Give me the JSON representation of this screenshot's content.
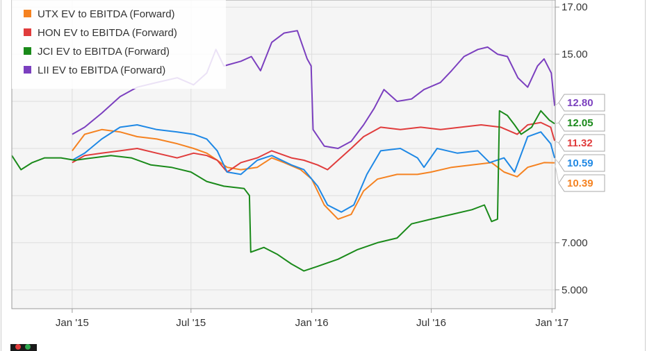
{
  "chart_data": {
    "type": "line",
    "x_ticks": [
      "Jan '15",
      "Jul '15",
      "Jan '16",
      "Jul '16",
      "Jan '17"
    ],
    "y_ticks": [
      "5.000",
      "7.000",
      "15.00",
      "17.00"
    ],
    "ylim": [
      4.2,
      17.3
    ],
    "x_range": [
      "2014-10-01",
      "2017-01-06"
    ],
    "grid": true,
    "legend_position": "top-left",
    "series": [
      {
        "name": "UTX EV to EBITDA (Forward)",
        "color": "#f58220",
        "end_label": "10.39",
        "points": [
          [
            "2015-01-01",
            10.9
          ],
          [
            "2015-01-20",
            11.6
          ],
          [
            "2015-02-15",
            11.8
          ],
          [
            "2015-03-15",
            11.7
          ],
          [
            "2015-04-10",
            11.5
          ],
          [
            "2015-05-10",
            11.4
          ],
          [
            "2015-06-10",
            11.2
          ],
          [
            "2015-07-05",
            11.0
          ],
          [
            "2015-07-25",
            10.8
          ],
          [
            "2015-08-10",
            10.5
          ],
          [
            "2015-08-25",
            10.2
          ],
          [
            "2015-09-15",
            10.1
          ],
          [
            "2015-10-10",
            10.2
          ],
          [
            "2015-11-01",
            10.6
          ],
          [
            "2015-11-20",
            10.4
          ],
          [
            "2015-12-15",
            10.1
          ],
          [
            "2016-01-01",
            9.7
          ],
          [
            "2016-01-20",
            8.6
          ],
          [
            "2016-02-10",
            8.0
          ],
          [
            "2016-03-01",
            8.2
          ],
          [
            "2016-03-20",
            9.2
          ],
          [
            "2016-04-10",
            9.7
          ],
          [
            "2016-05-10",
            9.9
          ],
          [
            "2016-06-10",
            9.9
          ],
          [
            "2016-07-01",
            10.0
          ],
          [
            "2016-08-01",
            10.2
          ],
          [
            "2016-09-01",
            10.3
          ],
          [
            "2016-10-01",
            10.4
          ],
          [
            "2016-10-20",
            10.0
          ],
          [
            "2016-11-09",
            9.8
          ],
          [
            "2016-11-25",
            10.2
          ],
          [
            "2016-12-20",
            10.4
          ],
          [
            "2017-01-05",
            10.39
          ]
        ]
      },
      {
        "name": "HON EV to EBITDA (Forward)",
        "color": "#e03c3c",
        "end_label": "11.32",
        "points": [
          [
            "2015-01-01",
            10.4
          ],
          [
            "2015-01-20",
            10.7
          ],
          [
            "2015-02-15",
            10.8
          ],
          [
            "2015-03-15",
            10.9
          ],
          [
            "2015-04-10",
            11.0
          ],
          [
            "2015-05-10",
            10.8
          ],
          [
            "2015-06-10",
            10.6
          ],
          [
            "2015-07-05",
            10.8
          ],
          [
            "2015-07-25",
            10.7
          ],
          [
            "2015-08-10",
            10.5
          ],
          [
            "2015-08-25",
            10.0
          ],
          [
            "2015-09-15",
            10.4
          ],
          [
            "2015-10-10",
            10.6
          ],
          [
            "2015-11-01",
            10.9
          ],
          [
            "2015-12-01",
            10.6
          ],
          [
            "2015-12-20",
            10.5
          ],
          [
            "2016-01-10",
            10.3
          ],
          [
            "2016-01-25",
            10.1
          ],
          [
            "2016-02-10",
            10.5
          ],
          [
            "2016-03-01",
            11.0
          ],
          [
            "2016-03-20",
            11.5
          ],
          [
            "2016-04-15",
            11.9
          ],
          [
            "2016-05-15",
            11.8
          ],
          [
            "2016-06-15",
            11.9
          ],
          [
            "2016-07-15",
            11.8
          ],
          [
            "2016-08-15",
            11.9
          ],
          [
            "2016-09-15",
            12.0
          ],
          [
            "2016-10-15",
            11.9
          ],
          [
            "2016-11-09",
            11.6
          ],
          [
            "2016-11-25",
            12.0
          ],
          [
            "2016-12-15",
            12.1
          ],
          [
            "2016-12-30",
            11.9
          ],
          [
            "2017-01-05",
            11.32
          ]
        ]
      },
      {
        "name": "JCI EV to EBITDA (Forward)",
        "color": "#1a8a1a",
        "end_label": "12.05",
        "points": [
          [
            "2014-10-01",
            10.7
          ],
          [
            "2014-10-15",
            10.1
          ],
          [
            "2014-11-01",
            10.4
          ],
          [
            "2014-11-20",
            10.6
          ],
          [
            "2014-12-15",
            10.6
          ],
          [
            "2015-01-05",
            10.5
          ],
          [
            "2015-02-01",
            10.6
          ],
          [
            "2015-03-01",
            10.7
          ],
          [
            "2015-04-01",
            10.6
          ],
          [
            "2015-05-01",
            10.3
          ],
          [
            "2015-06-01",
            10.2
          ],
          [
            "2015-07-01",
            10.0
          ],
          [
            "2015-07-25",
            9.6
          ],
          [
            "2015-08-20",
            9.4
          ],
          [
            "2015-09-20",
            9.3
          ],
          [
            "2015-09-28",
            9.0
          ],
          [
            "2015-09-30",
            6.6
          ],
          [
            "2015-10-20",
            6.8
          ],
          [
            "2015-11-10",
            6.5
          ],
          [
            "2015-12-01",
            6.1
          ],
          [
            "2015-12-20",
            5.8
          ],
          [
            "2016-01-10",
            6.0
          ],
          [
            "2016-02-10",
            6.3
          ],
          [
            "2016-03-10",
            6.7
          ],
          [
            "2016-04-10",
            7.0
          ],
          [
            "2016-05-10",
            7.2
          ],
          [
            "2016-06-01",
            7.8
          ],
          [
            "2016-07-01",
            8.0
          ],
          [
            "2016-08-01",
            8.2
          ],
          [
            "2016-09-01",
            8.4
          ],
          [
            "2016-09-20",
            8.6
          ],
          [
            "2016-10-01",
            7.9
          ],
          [
            "2016-10-10",
            8.0
          ],
          [
            "2016-10-13",
            12.6
          ],
          [
            "2016-10-25",
            12.4
          ],
          [
            "2016-11-05",
            12.0
          ],
          [
            "2016-11-15",
            11.6
          ],
          [
            "2016-12-01",
            11.9
          ],
          [
            "2016-12-15",
            12.6
          ],
          [
            "2016-12-28",
            12.2
          ],
          [
            "2017-01-05",
            12.05
          ]
        ]
      },
      {
        "name": "LII EV to EBITDA (Forward)",
        "color": "#7b3fbf",
        "end_label": "12.80",
        "points": [
          [
            "2015-01-01",
            11.6
          ],
          [
            "2015-01-20",
            11.9
          ],
          [
            "2015-02-15",
            12.5
          ],
          [
            "2015-03-15",
            13.2
          ],
          [
            "2015-04-10",
            13.6
          ],
          [
            "2015-05-10",
            13.8
          ],
          [
            "2015-06-10",
            14.0
          ],
          [
            "2015-07-05",
            13.7
          ],
          [
            "2015-07-25",
            14.2
          ],
          [
            "2015-08-08",
            15.2
          ],
          [
            "2015-08-20",
            14.5
          ],
          [
            "2015-09-15",
            14.7
          ],
          [
            "2015-10-01",
            14.9
          ],
          [
            "2015-10-15",
            14.3
          ],
          [
            "2015-11-01",
            15.5
          ],
          [
            "2015-11-20",
            15.9
          ],
          [
            "2015-12-10",
            16.0
          ],
          [
            "2015-12-25",
            14.8
          ],
          [
            "2015-12-31",
            14.5
          ],
          [
            "2016-01-03",
            11.8
          ],
          [
            "2016-01-20",
            11.1
          ],
          [
            "2016-02-10",
            11.0
          ],
          [
            "2016-03-01",
            11.3
          ],
          [
            "2016-03-20",
            12.0
          ],
          [
            "2016-04-05",
            12.7
          ],
          [
            "2016-04-20",
            13.5
          ],
          [
            "2016-05-10",
            13.0
          ],
          [
            "2016-06-01",
            13.1
          ],
          [
            "2016-06-20",
            13.5
          ],
          [
            "2016-07-15",
            13.8
          ],
          [
            "2016-08-01",
            14.3
          ],
          [
            "2016-08-20",
            14.9
          ],
          [
            "2016-09-10",
            15.2
          ],
          [
            "2016-09-25",
            15.3
          ],
          [
            "2016-10-10",
            15.0
          ],
          [
            "2016-10-25",
            14.9
          ],
          [
            "2016-11-10",
            14.0
          ],
          [
            "2016-11-25",
            13.6
          ],
          [
            "2016-12-10",
            14.5
          ],
          [
            "2016-12-20",
            14.8
          ],
          [
            "2016-12-31",
            14.2
          ],
          [
            "2017-01-05",
            12.8
          ]
        ]
      },
      {
        "name": "",
        "color": "#1e88e5",
        "end_label": "10.59",
        "points": [
          [
            "2015-01-01",
            10.5
          ],
          [
            "2015-01-20",
            10.8
          ],
          [
            "2015-02-15",
            11.4
          ],
          [
            "2015-03-15",
            11.9
          ],
          [
            "2015-04-10",
            12.0
          ],
          [
            "2015-05-10",
            11.8
          ],
          [
            "2015-06-10",
            11.7
          ],
          [
            "2015-07-05",
            11.6
          ],
          [
            "2015-07-25",
            11.4
          ],
          [
            "2015-08-10",
            10.9
          ],
          [
            "2015-08-25",
            10.0
          ],
          [
            "2015-09-15",
            9.9
          ],
          [
            "2015-10-10",
            10.5
          ],
          [
            "2015-11-01",
            10.7
          ],
          [
            "2015-12-01",
            10.3
          ],
          [
            "2015-12-20",
            10.1
          ],
          [
            "2016-01-10",
            9.4
          ],
          [
            "2016-01-25",
            8.6
          ],
          [
            "2016-02-15",
            8.3
          ],
          [
            "2016-03-05",
            8.6
          ],
          [
            "2016-03-25",
            9.9
          ],
          [
            "2016-04-15",
            10.9
          ],
          [
            "2016-05-15",
            11.0
          ],
          [
            "2016-06-10",
            10.6
          ],
          [
            "2016-06-20",
            10.2
          ],
          [
            "2016-07-10",
            11.0
          ],
          [
            "2016-08-10",
            10.8
          ],
          [
            "2016-09-10",
            10.9
          ],
          [
            "2016-09-28",
            10.4
          ],
          [
            "2016-10-20",
            10.6
          ],
          [
            "2016-11-05",
            10.0
          ],
          [
            "2016-11-25",
            11.5
          ],
          [
            "2016-12-15",
            11.7
          ],
          [
            "2016-12-30",
            11.2
          ],
          [
            "2017-01-05",
            10.59
          ]
        ]
      }
    ]
  }
}
